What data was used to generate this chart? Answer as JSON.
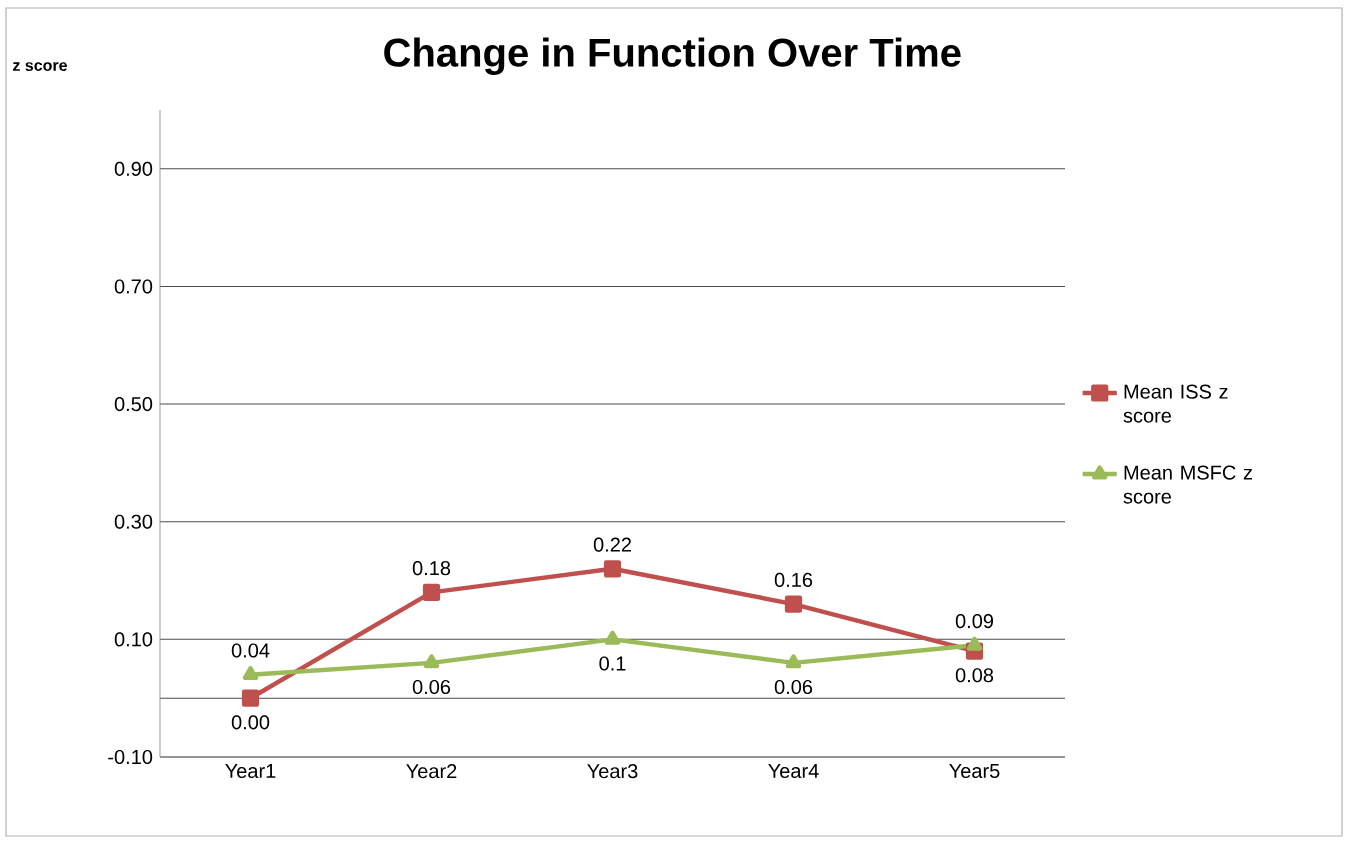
{
  "chart_data": {
    "type": "line",
    "title": "Change in Function Over Time",
    "ylabel": "z score",
    "categories": [
      "Year1",
      "Year2",
      "Year3",
      "Year4",
      "Year5"
    ],
    "series": [
      {
        "name": "Mean ISS z score",
        "color": "#c0504d",
        "marker": "square",
        "values": [
          0.0,
          0.18,
          0.22,
          0.16,
          0.08
        ],
        "value_labels": [
          "0.00",
          "0.18",
          "0.22",
          "0.16",
          "0.08"
        ]
      },
      {
        "name": "Mean MSFC z score",
        "color": "#9bbb59",
        "marker": "triangle",
        "values": [
          0.04,
          0.06,
          0.1,
          0.06,
          0.09
        ],
        "value_labels": [
          "0.04",
          "0.06",
          "0.1",
          "0.06",
          "0.09"
        ]
      }
    ],
    "ylim": [
      -0.1,
      1.0
    ],
    "yticks": [
      {
        "value": -0.1,
        "label": "-0.10"
      },
      {
        "value": 0,
        "label": null
      },
      {
        "value": 0.1,
        "label": "0.10"
      },
      {
        "value": 0.3,
        "label": "0.30"
      },
      {
        "value": 0.5,
        "label": "0.50"
      },
      {
        "value": 0.7,
        "label": "0.70"
      },
      {
        "value": 0.9,
        "label": "0.90"
      }
    ],
    "grid": "y",
    "legend": "right"
  }
}
